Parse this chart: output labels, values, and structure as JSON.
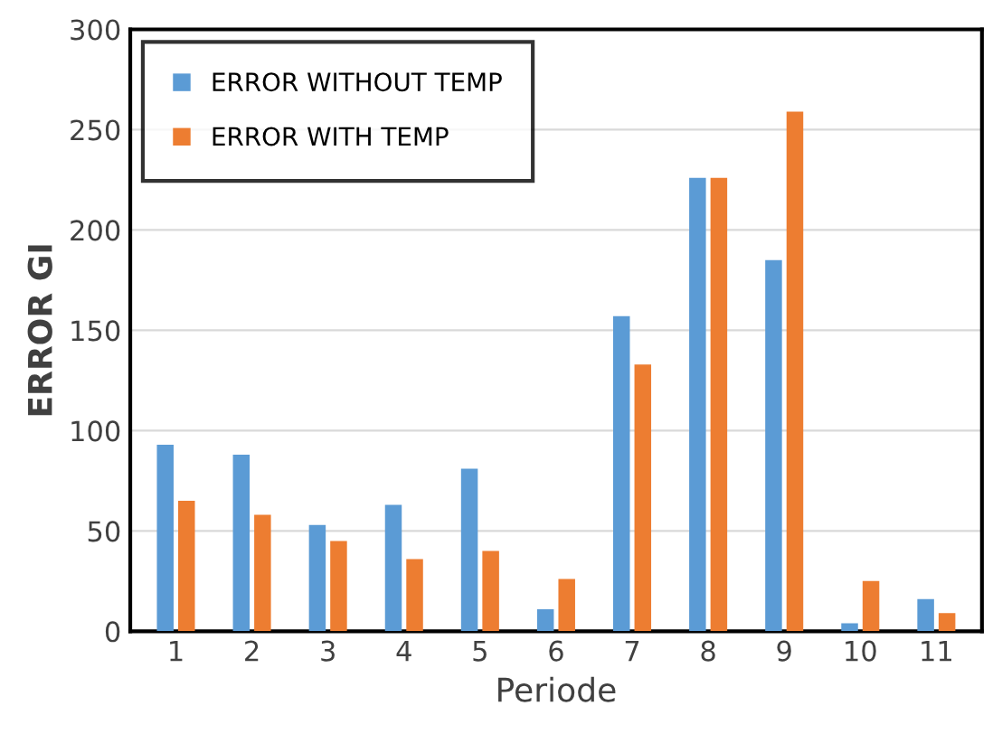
{
  "chart_data": {
    "type": "bar",
    "xlabel": "Periode",
    "ylabel": "ERROR GI",
    "categories": [
      "1",
      "2",
      "3",
      "4",
      "5",
      "6",
      "7",
      "8",
      "9",
      "10",
      "11"
    ],
    "series": [
      {
        "name": "ERROR WITHOUT TEMP",
        "color": "#5b9bd5",
        "values": [
          93,
          88,
          53,
          63,
          81,
          11,
          157,
          226,
          185,
          4,
          16
        ]
      },
      {
        "name": "ERROR WITH TEMP",
        "color": "#ed7d31",
        "values": [
          65,
          58,
          45,
          36,
          40,
          26,
          133,
          226,
          259,
          25,
          9
        ]
      }
    ],
    "ylim": [
      0,
      300
    ],
    "yticks": [
      0,
      50,
      100,
      150,
      200,
      250,
      300
    ],
    "grid": "y",
    "legend": "top left"
  }
}
